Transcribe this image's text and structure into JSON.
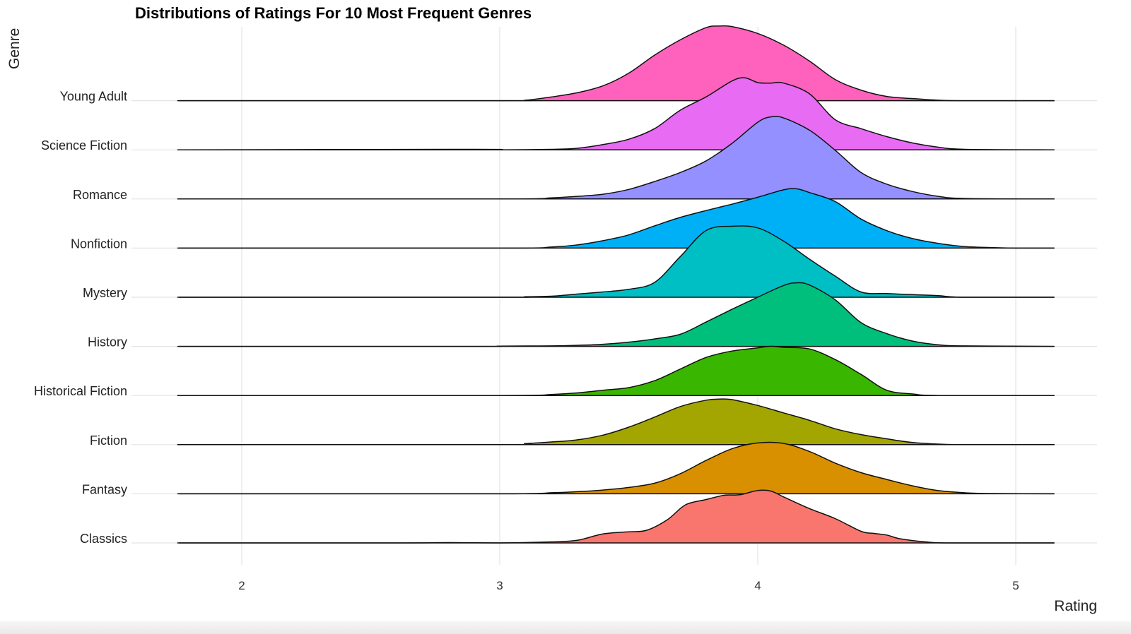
{
  "chart_data": {
    "type": "ridgeline",
    "title": "Distributions of Ratings For 10 Most Frequent Genres",
    "xlabel": "Rating",
    "ylabel": "Genre",
    "xlim": [
      1.75,
      5.15
    ],
    "x_ticks": [
      2,
      3,
      4,
      5
    ],
    "grid": true,
    "legend": "none",
    "categories": [
      "Classics",
      "Fantasy",
      "Fiction",
      "Historical Fiction",
      "History",
      "Mystery",
      "Nonfiction",
      "Romance",
      "Science Fiction",
      "Young Adult"
    ],
    "series": [
      {
        "name": "Classics",
        "color": "#F8766D",
        "density": [
          [
            1.75,
            0
          ],
          [
            2.6,
            0
          ],
          [
            2.8,
            0.006
          ],
          [
            3.0,
            0
          ],
          [
            3.2,
            0.02
          ],
          [
            3.3,
            0.05
          ],
          [
            3.4,
            0.17
          ],
          [
            3.5,
            0.21
          ],
          [
            3.57,
            0.24
          ],
          [
            3.65,
            0.44
          ],
          [
            3.72,
            0.72
          ],
          [
            3.8,
            0.82
          ],
          [
            3.87,
            0.9
          ],
          [
            3.93,
            0.91
          ],
          [
            4.0,
            0.99
          ],
          [
            4.05,
            0.98
          ],
          [
            4.1,
            0.87
          ],
          [
            4.2,
            0.65
          ],
          [
            4.3,
            0.46
          ],
          [
            4.4,
            0.22
          ],
          [
            4.45,
            0.18
          ],
          [
            4.5,
            0.15
          ],
          [
            4.55,
            0.08
          ],
          [
            4.65,
            0.02
          ],
          [
            4.75,
            0
          ],
          [
            5.15,
            0
          ]
        ]
      },
      {
        "name": "Fantasy",
        "color": "#D89000",
        "density": [
          [
            1.75,
            0
          ],
          [
            3.0,
            0
          ],
          [
            3.2,
            0.02
          ],
          [
            3.3,
            0.04
          ],
          [
            3.4,
            0.07
          ],
          [
            3.5,
            0.12
          ],
          [
            3.6,
            0.2
          ],
          [
            3.7,
            0.38
          ],
          [
            3.8,
            0.63
          ],
          [
            3.9,
            0.85
          ],
          [
            4.0,
            0.96
          ],
          [
            4.1,
            0.95
          ],
          [
            4.2,
            0.8
          ],
          [
            4.3,
            0.58
          ],
          [
            4.4,
            0.4
          ],
          [
            4.5,
            0.27
          ],
          [
            4.6,
            0.15
          ],
          [
            4.7,
            0.06
          ],
          [
            4.8,
            0.02
          ],
          [
            4.9,
            0.005
          ],
          [
            5.15,
            0
          ]
        ]
      },
      {
        "name": "Fiction",
        "color": "#A3A500",
        "density": [
          [
            1.75,
            0
          ],
          [
            3.0,
            0
          ],
          [
            3.1,
            0.02
          ],
          [
            3.2,
            0.05
          ],
          [
            3.3,
            0.09
          ],
          [
            3.4,
            0.18
          ],
          [
            3.5,
            0.33
          ],
          [
            3.6,
            0.52
          ],
          [
            3.7,
            0.72
          ],
          [
            3.8,
            0.84
          ],
          [
            3.85,
            0.86
          ],
          [
            3.9,
            0.85
          ],
          [
            4.0,
            0.74
          ],
          [
            4.1,
            0.6
          ],
          [
            4.2,
            0.46
          ],
          [
            4.3,
            0.3
          ],
          [
            4.4,
            0.19
          ],
          [
            4.5,
            0.11
          ],
          [
            4.6,
            0.04
          ],
          [
            4.7,
            0.01
          ],
          [
            4.8,
            0
          ],
          [
            5.15,
            0
          ]
        ]
      },
      {
        "name": "Historical Fiction",
        "color": "#39B600",
        "density": [
          [
            1.75,
            0
          ],
          [
            3.0,
            0
          ],
          [
            3.2,
            0.02
          ],
          [
            3.3,
            0.05
          ],
          [
            3.4,
            0.1
          ],
          [
            3.5,
            0.15
          ],
          [
            3.6,
            0.28
          ],
          [
            3.7,
            0.5
          ],
          [
            3.8,
            0.72
          ],
          [
            3.9,
            0.84
          ],
          [
            4.0,
            0.9
          ],
          [
            4.05,
            0.93
          ],
          [
            4.1,
            0.91
          ],
          [
            4.2,
            0.88
          ],
          [
            4.3,
            0.68
          ],
          [
            4.4,
            0.4
          ],
          [
            4.5,
            0.1
          ],
          [
            4.6,
            0.03
          ],
          [
            4.7,
            0
          ],
          [
            5.15,
            0
          ]
        ]
      },
      {
        "name": "History",
        "color": "#00BF7D",
        "density": [
          [
            1.75,
            0
          ],
          [
            2.9,
            0
          ],
          [
            3.0,
            0.005
          ],
          [
            3.2,
            0.01
          ],
          [
            3.3,
            0.02
          ],
          [
            3.4,
            0.04
          ],
          [
            3.5,
            0.08
          ],
          [
            3.6,
            0.14
          ],
          [
            3.7,
            0.23
          ],
          [
            3.8,
            0.46
          ],
          [
            3.9,
            0.7
          ],
          [
            4.0,
            0.93
          ],
          [
            4.1,
            1.15
          ],
          [
            4.15,
            1.2
          ],
          [
            4.2,
            1.16
          ],
          [
            4.3,
            0.88
          ],
          [
            4.4,
            0.45
          ],
          [
            4.5,
            0.24
          ],
          [
            4.6,
            0.1
          ],
          [
            4.7,
            0.03
          ],
          [
            4.8,
            0.01
          ],
          [
            5.15,
            0
          ]
        ]
      },
      {
        "name": "Mystery",
        "color": "#00BFC4",
        "density": [
          [
            1.75,
            0
          ],
          [
            3.0,
            0
          ],
          [
            3.1,
            0.01
          ],
          [
            3.2,
            0.02
          ],
          [
            3.3,
            0.06
          ],
          [
            3.4,
            0.1
          ],
          [
            3.5,
            0.15
          ],
          [
            3.6,
            0.28
          ],
          [
            3.7,
            0.77
          ],
          [
            3.8,
            1.26
          ],
          [
            3.9,
            1.34
          ],
          [
            4.0,
            1.31
          ],
          [
            4.1,
            1.06
          ],
          [
            4.2,
            0.72
          ],
          [
            4.3,
            0.4
          ],
          [
            4.4,
            0.1
          ],
          [
            4.5,
            0.07
          ],
          [
            4.6,
            0.05
          ],
          [
            4.7,
            0.03
          ],
          [
            4.8,
            0
          ],
          [
            5.15,
            0
          ]
        ]
      },
      {
        "name": "Nonfiction",
        "color": "#00B0F6",
        "density": [
          [
            1.75,
            0
          ],
          [
            3.0,
            0
          ],
          [
            3.2,
            0.02
          ],
          [
            3.3,
            0.06
          ],
          [
            3.4,
            0.14
          ],
          [
            3.5,
            0.25
          ],
          [
            3.6,
            0.42
          ],
          [
            3.7,
            0.58
          ],
          [
            3.8,
            0.71
          ],
          [
            3.9,
            0.83
          ],
          [
            4.0,
            0.96
          ],
          [
            4.1,
            1.1
          ],
          [
            4.15,
            1.12
          ],
          [
            4.2,
            1.05
          ],
          [
            4.3,
            0.88
          ],
          [
            4.4,
            0.55
          ],
          [
            4.5,
            0.33
          ],
          [
            4.6,
            0.18
          ],
          [
            4.7,
            0.09
          ],
          [
            4.8,
            0.03
          ],
          [
            5.0,
            0
          ],
          [
            5.15,
            0
          ]
        ]
      },
      {
        "name": "Romance",
        "color": "#9590FF",
        "density": [
          [
            1.75,
            0
          ],
          [
            3.0,
            0
          ],
          [
            3.2,
            0.02
          ],
          [
            3.3,
            0.05
          ],
          [
            3.4,
            0.09
          ],
          [
            3.5,
            0.18
          ],
          [
            3.6,
            0.33
          ],
          [
            3.7,
            0.5
          ],
          [
            3.8,
            0.72
          ],
          [
            3.9,
            1.05
          ],
          [
            4.0,
            1.45
          ],
          [
            4.05,
            1.55
          ],
          [
            4.1,
            1.53
          ],
          [
            4.2,
            1.3
          ],
          [
            4.3,
            0.92
          ],
          [
            4.4,
            0.5
          ],
          [
            4.5,
            0.28
          ],
          [
            4.6,
            0.14
          ],
          [
            4.7,
            0.05
          ],
          [
            4.8,
            0.01
          ],
          [
            5.15,
            0
          ]
        ]
      },
      {
        "name": "Science Fiction",
        "color": "#E76BF3",
        "density": [
          [
            1.75,
            0
          ],
          [
            2.9,
            0.01
          ],
          [
            3.0,
            0
          ],
          [
            3.2,
            0.01
          ],
          [
            3.3,
            0.03
          ],
          [
            3.4,
            0.1
          ],
          [
            3.5,
            0.2
          ],
          [
            3.6,
            0.4
          ],
          [
            3.7,
            0.75
          ],
          [
            3.8,
            1.0
          ],
          [
            3.9,
            1.3
          ],
          [
            3.95,
            1.36
          ],
          [
            4.0,
            1.27
          ],
          [
            4.05,
            1.26
          ],
          [
            4.1,
            1.26
          ],
          [
            4.2,
            1.06
          ],
          [
            4.3,
            0.57
          ],
          [
            4.4,
            0.4
          ],
          [
            4.5,
            0.25
          ],
          [
            4.6,
            0.13
          ],
          [
            4.7,
            0.05
          ],
          [
            4.8,
            0.01
          ],
          [
            5.15,
            0
          ]
        ]
      },
      {
        "name": "Young Adult",
        "color": "#FF62BC",
        "density": [
          [
            1.75,
            0
          ],
          [
            3.0,
            0
          ],
          [
            3.1,
            0.01
          ],
          [
            3.2,
            0.07
          ],
          [
            3.3,
            0.15
          ],
          [
            3.4,
            0.28
          ],
          [
            3.5,
            0.52
          ],
          [
            3.6,
            0.86
          ],
          [
            3.7,
            1.15
          ],
          [
            3.8,
            1.38
          ],
          [
            3.85,
            1.41
          ],
          [
            3.9,
            1.4
          ],
          [
            4.0,
            1.27
          ],
          [
            4.1,
            1.05
          ],
          [
            4.2,
            0.75
          ],
          [
            4.3,
            0.4
          ],
          [
            4.4,
            0.2
          ],
          [
            4.5,
            0.08
          ],
          [
            4.6,
            0.04
          ],
          [
            4.7,
            0.01
          ],
          [
            4.8,
            0
          ],
          [
            5.15,
            0
          ]
        ]
      }
    ]
  }
}
